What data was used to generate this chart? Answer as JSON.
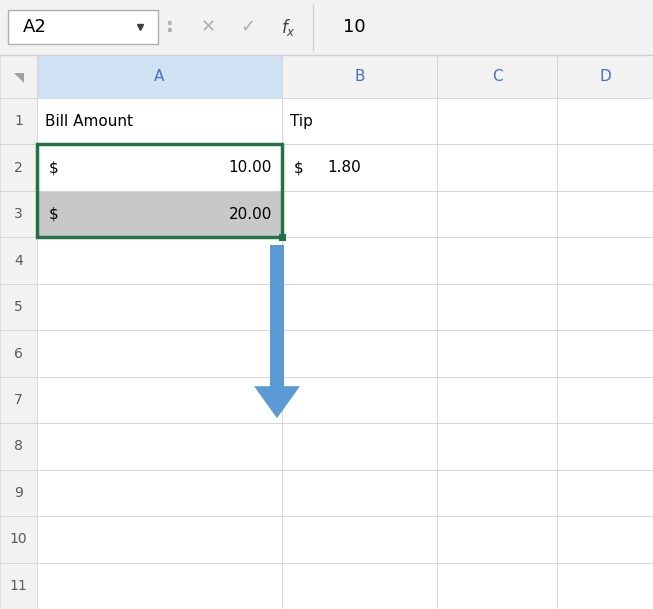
{
  "formula_bar_cell": "A2",
  "formula_bar_value": "10",
  "col_headers": [
    "A",
    "B",
    "C",
    "D"
  ],
  "num_rows": 11,
  "cell_data": {
    "A1": {
      "text": "Bill Amount",
      "align": "left"
    },
    "B1": {
      "text": "Tip",
      "align": "left"
    },
    "A2_dollar": "$",
    "A2_num": "10.00",
    "A3_dollar": "$",
    "A3_num": "20.00",
    "B2_dollar": "$",
    "B2_num": "1.80"
  },
  "selection_color": "#217346",
  "row3_bg": "#c8c8c8",
  "arrow_color": "#5b9bd5",
  "grid_color": "#d0d0d0",
  "header_bg": "#f2f2f2",
  "col_a_header_bg": "#cfe2f3",
  "header_text_color": "#4472c4",
  "cell_bg": "#ffffff",
  "row_number_color": "#595959",
  "text_color": "#000000",
  "toolbar_bg": "#f2f2f2",
  "toolbar_border": "#d0d0d0",
  "namebox_text_color": "#000000",
  "fx_color": "#595959",
  "icon_color": "#a0a0a0",
  "formula_value": "10"
}
